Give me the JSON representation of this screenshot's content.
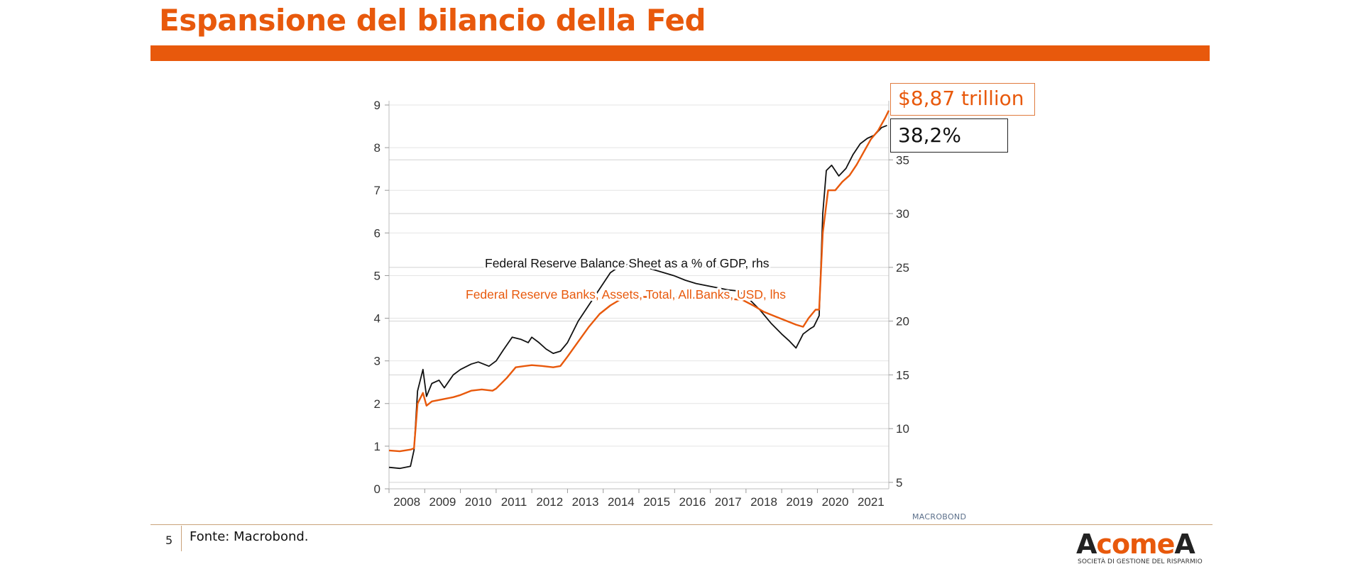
{
  "slide": {
    "title": "Espansione del bilancio della Fed",
    "page_number": "5",
    "source": "Fonte: Macrobond.",
    "chart_credit": "MACROBOND",
    "brand": {
      "part1": "A",
      "part2": "come",
      "part3": "A",
      "tagline": "SOCIETÀ DI GESTIONE DEL RISPARMIO"
    },
    "callouts": {
      "assets": "$8,87 trillion",
      "gdp": "38,2%"
    }
  },
  "colors": {
    "accent": "#e8590c",
    "series_black": "#111111",
    "series_orange": "#e8590c"
  },
  "chart_data": {
    "type": "line",
    "title": "",
    "x_ticks": [
      "2008",
      "2009",
      "2010",
      "2011",
      "2012",
      "2013",
      "2014",
      "2015",
      "2016",
      "2017",
      "2018",
      "2019",
      "2020",
      "2021"
    ],
    "xlim": [
      2008.0,
      2022.0
    ],
    "y_left": {
      "ticks": [
        0,
        1,
        2,
        3,
        4,
        5,
        6,
        7,
        8,
        9
      ],
      "lim": [
        0,
        9
      ]
    },
    "y_right": {
      "ticks": [
        5,
        10,
        15,
        20,
        25,
        30,
        35
      ],
      "lim": [
        4.4,
        40.1
      ]
    },
    "grid": true,
    "series": [
      {
        "name": "Federal Reserve Balance Sheet as a % of GDP, rhs",
        "axis": "right",
        "color": "#111111",
        "points": [
          [
            2008.0,
            6.4
          ],
          [
            2008.3,
            6.3
          ],
          [
            2008.6,
            6.5
          ],
          [
            2008.7,
            8.0
          ],
          [
            2008.8,
            13.5
          ],
          [
            2008.95,
            15.5
          ],
          [
            2009.05,
            13.0
          ],
          [
            2009.2,
            14.2
          ],
          [
            2009.4,
            14.5
          ],
          [
            2009.55,
            13.8
          ],
          [
            2009.8,
            15.0
          ],
          [
            2010.0,
            15.5
          ],
          [
            2010.3,
            16.0
          ],
          [
            2010.5,
            16.2
          ],
          [
            2010.8,
            15.8
          ],
          [
            2011.0,
            16.3
          ],
          [
            2011.2,
            17.3
          ],
          [
            2011.45,
            18.5
          ],
          [
            2011.7,
            18.3
          ],
          [
            2011.9,
            18.0
          ],
          [
            2012.0,
            18.5
          ],
          [
            2012.2,
            18.0
          ],
          [
            2012.4,
            17.4
          ],
          [
            2012.6,
            17.0
          ],
          [
            2012.8,
            17.2
          ],
          [
            2013.0,
            18.0
          ],
          [
            2013.3,
            20.0
          ],
          [
            2013.6,
            21.5
          ],
          [
            2013.9,
            23.0
          ],
          [
            2014.2,
            24.5
          ],
          [
            2014.5,
            25.2
          ],
          [
            2014.8,
            25.3
          ],
          [
            2015.1,
            25.1
          ],
          [
            2015.4,
            24.8
          ],
          [
            2015.7,
            24.5
          ],
          [
            2016.0,
            24.2
          ],
          [
            2016.3,
            23.8
          ],
          [
            2016.6,
            23.5
          ],
          [
            2016.9,
            23.3
          ],
          [
            2017.2,
            23.1
          ],
          [
            2017.5,
            22.9
          ],
          [
            2017.8,
            22.8
          ],
          [
            2018.1,
            22.0
          ],
          [
            2018.4,
            21.0
          ],
          [
            2018.7,
            19.8
          ],
          [
            2019.0,
            18.8
          ],
          [
            2019.2,
            18.2
          ],
          [
            2019.4,
            17.5
          ],
          [
            2019.6,
            18.8
          ],
          [
            2019.8,
            19.3
          ],
          [
            2019.9,
            19.5
          ],
          [
            2020.05,
            20.5
          ],
          [
            2020.15,
            30.0
          ],
          [
            2020.25,
            34.0
          ],
          [
            2020.4,
            34.5
          ],
          [
            2020.6,
            33.5
          ],
          [
            2020.8,
            34.2
          ],
          [
            2021.0,
            35.5
          ],
          [
            2021.2,
            36.5
          ],
          [
            2021.4,
            37.0
          ],
          [
            2021.6,
            37.3
          ],
          [
            2021.8,
            38.0
          ],
          [
            2021.95,
            38.2
          ]
        ]
      },
      {
        "name": "Federal Reserve Banks, Assets, Total, All Banks, USD, lhs",
        "axis": "left",
        "color": "#e8590c",
        "points": [
          [
            2008.0,
            0.9
          ],
          [
            2008.3,
            0.88
          ],
          [
            2008.6,
            0.92
          ],
          [
            2008.7,
            0.95
          ],
          [
            2008.8,
            2.0
          ],
          [
            2008.95,
            2.25
          ],
          [
            2009.05,
            1.95
          ],
          [
            2009.2,
            2.05
          ],
          [
            2009.5,
            2.1
          ],
          [
            2009.8,
            2.15
          ],
          [
            2010.0,
            2.2
          ],
          [
            2010.3,
            2.3
          ],
          [
            2010.6,
            2.33
          ],
          [
            2010.9,
            2.3
          ],
          [
            2011.0,
            2.35
          ],
          [
            2011.3,
            2.6
          ],
          [
            2011.55,
            2.85
          ],
          [
            2011.8,
            2.88
          ],
          [
            2012.0,
            2.9
          ],
          [
            2012.3,
            2.88
          ],
          [
            2012.6,
            2.85
          ],
          [
            2012.8,
            2.88
          ],
          [
            2013.0,
            3.1
          ],
          [
            2013.3,
            3.45
          ],
          [
            2013.6,
            3.8
          ],
          [
            2013.9,
            4.1
          ],
          [
            2014.2,
            4.3
          ],
          [
            2014.5,
            4.45
          ],
          [
            2014.8,
            4.5
          ],
          [
            2015.2,
            4.5
          ],
          [
            2015.6,
            4.5
          ],
          [
            2016.0,
            4.49
          ],
          [
            2016.4,
            4.48
          ],
          [
            2016.8,
            4.47
          ],
          [
            2017.2,
            4.46
          ],
          [
            2017.6,
            4.45
          ],
          [
            2017.9,
            4.43
          ],
          [
            2018.2,
            4.3
          ],
          [
            2018.5,
            4.15
          ],
          [
            2018.8,
            4.05
          ],
          [
            2019.1,
            3.95
          ],
          [
            2019.4,
            3.85
          ],
          [
            2019.6,
            3.8
          ],
          [
            2019.75,
            4.0
          ],
          [
            2019.95,
            4.2
          ],
          [
            2020.05,
            4.2
          ],
          [
            2020.15,
            6.0
          ],
          [
            2020.3,
            7.0
          ],
          [
            2020.5,
            7.0
          ],
          [
            2020.7,
            7.2
          ],
          [
            2020.9,
            7.35
          ],
          [
            2021.1,
            7.6
          ],
          [
            2021.3,
            7.9
          ],
          [
            2021.5,
            8.2
          ],
          [
            2021.7,
            8.4
          ],
          [
            2021.9,
            8.7
          ],
          [
            2022.0,
            8.87
          ]
        ]
      }
    ],
    "annotations": [
      {
        "text": "Federal Reserve Balance Sheet as a % of GDP, rhs",
        "color": "#111111"
      },
      {
        "text": "Federal Reserve Banks, Assets, Total, All Banks, USD, lhs",
        "color": "#e8590c"
      }
    ]
  }
}
